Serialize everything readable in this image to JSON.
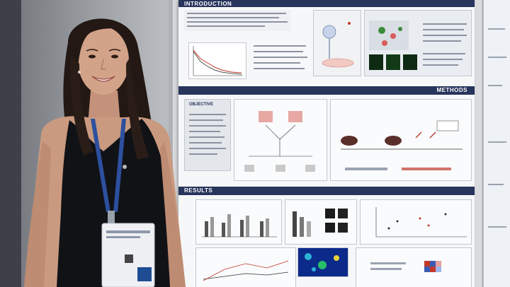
{
  "poster": {
    "sections": {
      "introduction": "INTRODUCTION",
      "methods": "METHODS",
      "results": "RESULTS",
      "objective": "OBJECTIVE"
    }
  },
  "colors": {
    "poster_band": "#27345c",
    "poster_bg": "#f6f7f9",
    "dress": "#111216",
    "lanyard": "#2d4f9e",
    "hair": "#231814",
    "skin": "#c99a80"
  },
  "objects": [
    "woman",
    "lanyard",
    "name-badge",
    "poster",
    "poster-board",
    "side-poster"
  ]
}
